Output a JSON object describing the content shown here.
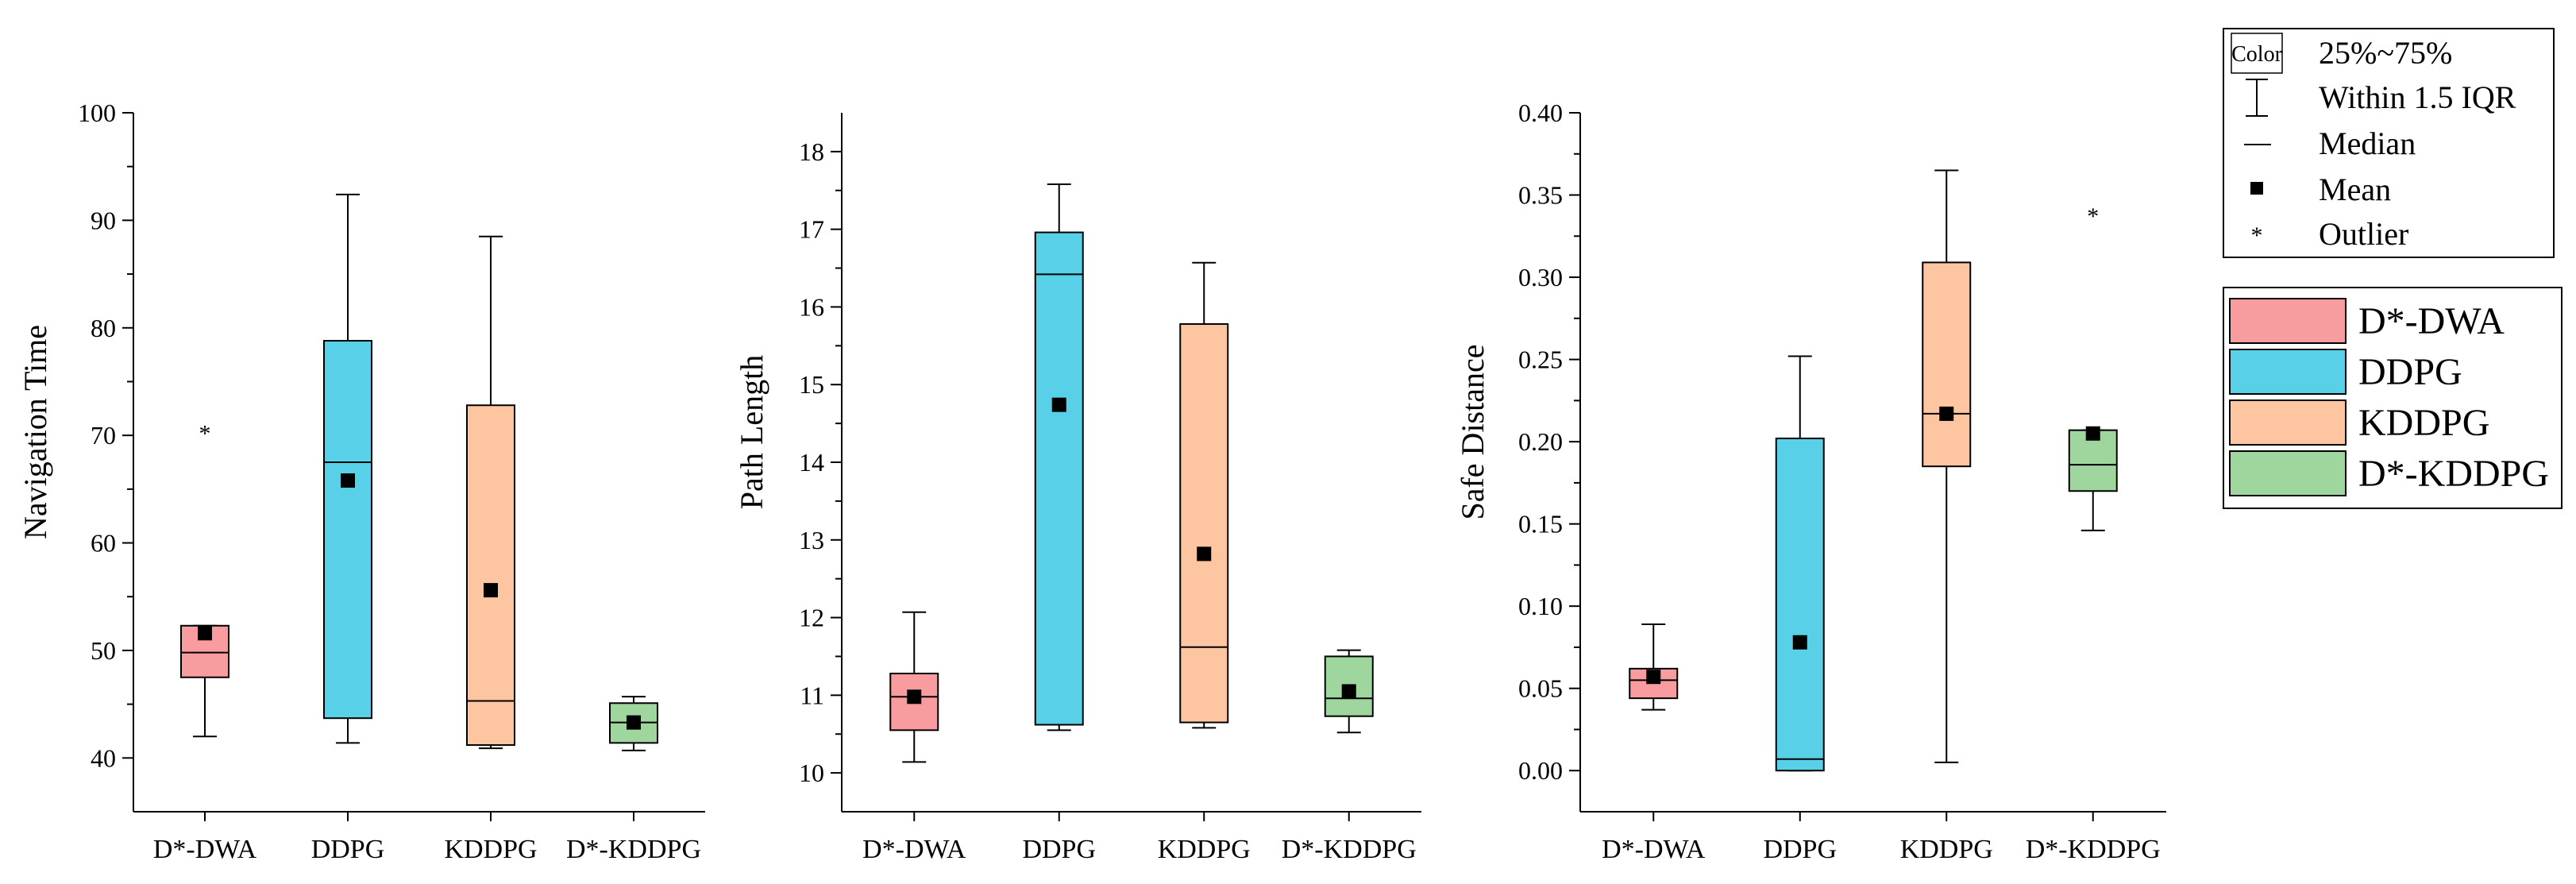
{
  "chart_data": [
    {
      "type": "box",
      "ylabel": "Navigation Time",
      "ylim": [
        35,
        100
      ],
      "yticks": [
        40,
        50,
        60,
        70,
        80,
        90,
        100
      ],
      "tick_labels": [
        "40",
        "50",
        "60",
        "70",
        "80",
        "90",
        "100"
      ],
      "categories": [
        "D*-DWA",
        "DDPG",
        "KDDPG",
        "D*-KDDPG"
      ],
      "series": [
        {
          "name": "D*-DWA",
          "min": 42.0,
          "q1": 47.5,
          "median": 49.8,
          "q3": 52.3,
          "max": 52.3,
          "mean": 51.6,
          "outliers": [
            70.8
          ]
        },
        {
          "name": "DDPG",
          "min": 41.4,
          "q1": 43.7,
          "median": 67.5,
          "q3": 78.8,
          "max": 92.4,
          "mean": 65.8,
          "outliers": []
        },
        {
          "name": "KDDPG",
          "min": 40.9,
          "q1": 41.2,
          "median": 45.3,
          "q3": 72.8,
          "max": 88.5,
          "mean": 55.6,
          "outliers": []
        },
        {
          "name": "D*-KDDPG",
          "min": 40.7,
          "q1": 41.4,
          "median": 43.3,
          "q3": 45.1,
          "max": 45.7,
          "mean": 43.3,
          "outliers": []
        }
      ]
    },
    {
      "type": "box",
      "ylabel": "Path Length",
      "ylim": [
        9.5,
        18.5
      ],
      "yticks": [
        10,
        11,
        12,
        13,
        14,
        15,
        16,
        17,
        18
      ],
      "tick_labels": [
        "10",
        "11",
        "12",
        "13",
        "14",
        "15",
        "16",
        "17",
        "18"
      ],
      "categories": [
        "D*-DWA",
        "DDPG",
        "KDDPG",
        "D*-KDDPG"
      ],
      "series": [
        {
          "name": "D*-DWA",
          "min": 10.14,
          "q1": 10.55,
          "median": 10.98,
          "q3": 11.28,
          "max": 12.07,
          "mean": 10.98,
          "outliers": []
        },
        {
          "name": "DDPG",
          "min": 10.55,
          "q1": 10.62,
          "median": 16.42,
          "q3": 16.96,
          "max": 17.58,
          "mean": 14.74,
          "outliers": []
        },
        {
          "name": "KDDPG",
          "min": 10.58,
          "q1": 10.65,
          "median": 11.62,
          "q3": 15.78,
          "max": 16.57,
          "mean": 12.82,
          "outliers": []
        },
        {
          "name": "D*-KDDPG",
          "min": 10.52,
          "q1": 10.73,
          "median": 10.96,
          "q3": 11.5,
          "max": 11.58,
          "mean": 11.05,
          "outliers": []
        }
      ]
    },
    {
      "type": "box",
      "ylabel": "Safe Distance",
      "ylim": [
        -0.025,
        0.4
      ],
      "yticks": [
        0.0,
        0.05,
        0.1,
        0.15,
        0.2,
        0.25,
        0.3,
        0.35,
        0.4
      ],
      "tick_labels": [
        "0.00",
        "0.05",
        "0.10",
        "0.15",
        "0.20",
        "0.25",
        "0.30",
        "0.35",
        "0.40"
      ],
      "categories": [
        "D*-DWA",
        "DDPG",
        "KDDPG",
        "D*-KDDPG"
      ],
      "series": [
        {
          "name": "D*-DWA",
          "min": 0.037,
          "q1": 0.044,
          "median": 0.055,
          "q3": 0.062,
          "max": 0.089,
          "mean": 0.057,
          "outliers": []
        },
        {
          "name": "DDPG",
          "min": 0.0,
          "q1": 0.0,
          "median": 0.007,
          "q3": 0.202,
          "max": 0.252,
          "mean": 0.078,
          "outliers": []
        },
        {
          "name": "KDDPG",
          "min": 0.005,
          "q1": 0.185,
          "median": 0.217,
          "q3": 0.309,
          "max": 0.365,
          "mean": 0.217,
          "outliers": []
        },
        {
          "name": "D*-KDDPG",
          "min": 0.146,
          "q1": 0.17,
          "median": 0.186,
          "q3": 0.207,
          "max": 0.207,
          "mean": 0.205,
          "outliers": [
            0.341
          ]
        }
      ]
    }
  ],
  "colors": {
    "D*-DWA": "#f99ca0",
    "DDPG": "#58d0e8",
    "KDDPG": "#fec6a0",
    "D*-KDDPG": "#9fd69e"
  },
  "legend_box": {
    "color_label": "Color",
    "range_label": "25%~75%",
    "whisker_label": "Within 1.5 IQR",
    "median_label": "Median",
    "mean_label": "Mean",
    "outlier_label": "Outlier"
  },
  "legend_series": [
    "D*-DWA",
    "DDPG",
    "KDDPG",
    "D*-KDDPG"
  ]
}
